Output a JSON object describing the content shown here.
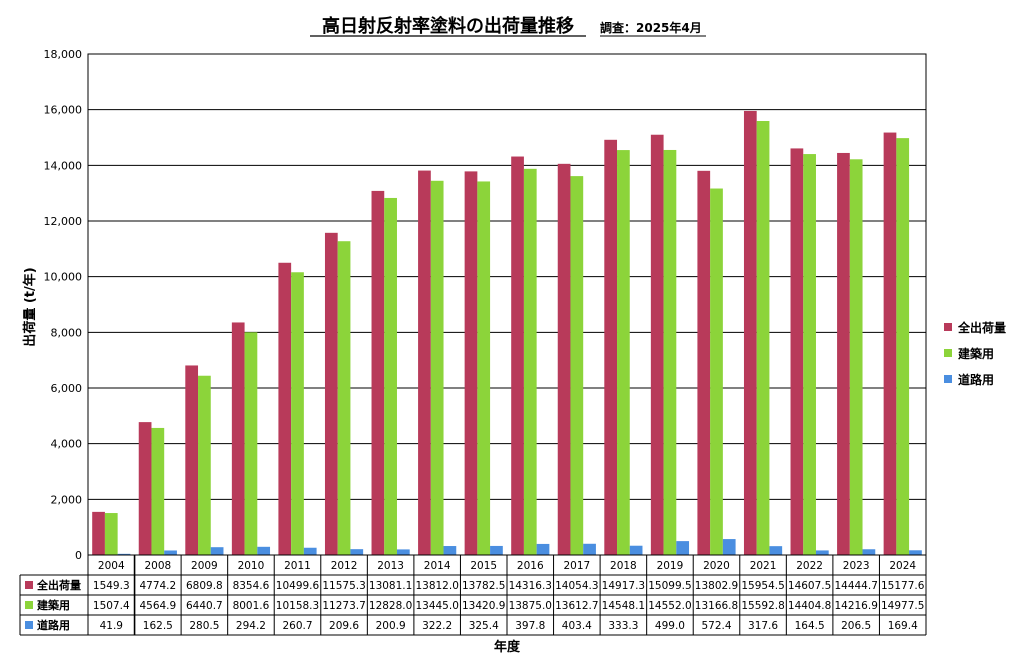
{
  "chart_data": {
    "type": "bar",
    "title": "高日射反射率塗料の出荷量推移",
    "subtitle": "調査：2025年4月",
    "xlabel": "年度",
    "ylabel": "出荷量 (t/年)",
    "ylim": [
      0,
      18000
    ],
    "yticks": [
      "0",
      "2,000",
      "4,000",
      "6,000",
      "8,000",
      "10,000",
      "12,000",
      "14,000",
      "16,000",
      "18,000"
    ],
    "grid": true,
    "legend_position": "right",
    "categories": [
      "2004",
      "2008",
      "2009",
      "2010",
      "2011",
      "2012",
      "2013",
      "2014",
      "2015",
      "2016",
      "2017",
      "2018",
      "2019",
      "2020",
      "2021",
      "2022",
      "2023",
      "2024"
    ],
    "series": [
      {
        "name": "全出荷量",
        "color": "#b83a5a",
        "values": [
          1549.3,
          4774.2,
          6809.8,
          8354.6,
          10499.6,
          11575.3,
          13081.1,
          13812.0,
          13782.5,
          14316.3,
          14054.3,
          14917.3,
          15099.5,
          13802.9,
          15954.5,
          14607.5,
          14444.7,
          15177.6
        ],
        "labels": [
          "1549.3",
          "4774.2",
          "6809.8",
          "8354.6",
          "10499.6",
          "11575.3",
          "13081.1",
          "13812.0",
          "13782.5",
          "14316.3",
          "14054.3",
          "14917.3",
          "15099.5",
          "13802.9",
          "15954.5",
          "14607.5",
          "14444.7",
          "15177.6"
        ]
      },
      {
        "name": "建築用",
        "color": "#8cd43a",
        "values": [
          1507.4,
          4564.9,
          6440.7,
          8001.6,
          10158.3,
          11273.7,
          12828.0,
          13445.0,
          13420.9,
          13875.0,
          13612.7,
          14548.1,
          14552.0,
          13166.8,
          15592.8,
          14404.8,
          14216.9,
          14977.5
        ],
        "labels": [
          "1507.4",
          "4564.9",
          "6440.7",
          "8001.6",
          "10158.3",
          "11273.7",
          "12828.0",
          "13445.0",
          "13420.9",
          "13875.0",
          "13612.7",
          "14548.1",
          "14552.0",
          "13166.8",
          "15592.8",
          "14404.8",
          "14216.9",
          "14977.5"
        ]
      },
      {
        "name": "道路用",
        "color": "#4a8ee0",
        "values": [
          41.9,
          162.5,
          280.5,
          294.2,
          260.7,
          209.6,
          200.9,
          322.2,
          325.4,
          397.8,
          403.4,
          333.3,
          499.0,
          572.4,
          317.6,
          164.5,
          206.5,
          169.4
        ],
        "labels": [
          "41.9",
          "162.5",
          "280.5",
          "294.2",
          "260.7",
          "209.6",
          "200.9",
          "322.2",
          "325.4",
          "397.8",
          "403.4",
          "333.3",
          "499.0",
          "572.4",
          "317.6",
          "164.5",
          "206.5",
          "169.4"
        ]
      }
    ]
  }
}
